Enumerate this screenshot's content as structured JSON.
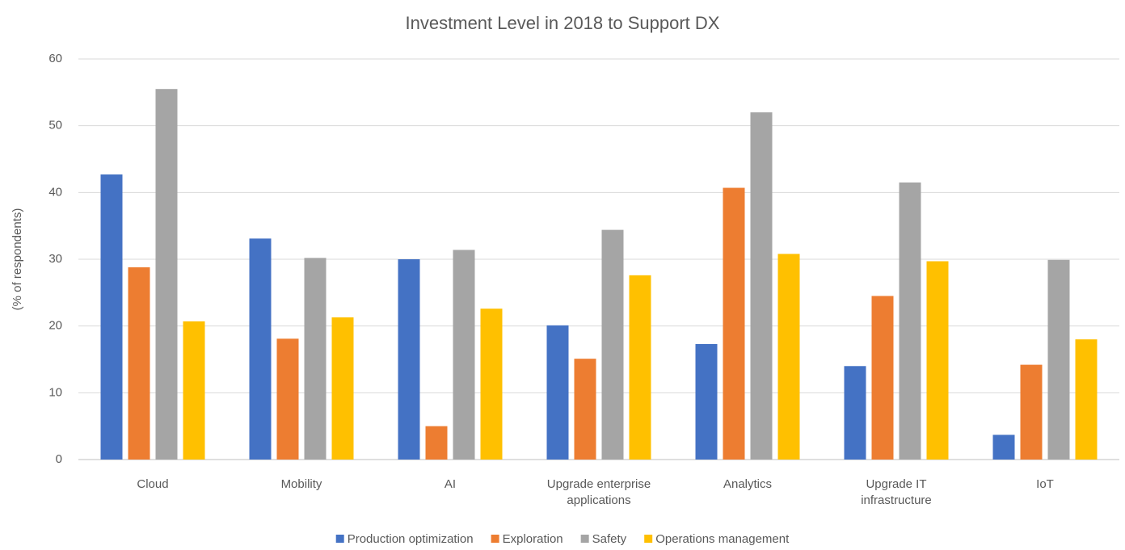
{
  "chart_data": {
    "type": "bar",
    "title": "Investment Level in 2018 to Support DX",
    "y_label": "(% of respondents)",
    "categories": [
      "Cloud",
      "Mobility",
      "AI",
      "Upgrade enterprise applications",
      "Analytics",
      "Upgrade IT infrastructure",
      "IoT"
    ],
    "series": [
      {
        "name": "Production optimization",
        "color": "#4472c4",
        "values": [
          42.7,
          33.1,
          30,
          20.1,
          17.3,
          14,
          3.7
        ]
      },
      {
        "name": "Exploration",
        "color": "#ed7d31",
        "values": [
          28.8,
          18.1,
          5,
          15.1,
          40.7,
          24.5,
          14.2
        ]
      },
      {
        "name": "Safety",
        "color": "#a5a5a5",
        "values": [
          55.5,
          30.2,
          31.4,
          34.4,
          52,
          41.5,
          29.9
        ]
      },
      {
        "name": "Operations management",
        "color": "#ffc000",
        "values": [
          20.7,
          21.3,
          22.6,
          27.6,
          30.8,
          29.7,
          18
        ]
      }
    ],
    "ylim": [
      0,
      60
    ],
    "yticks": [
      0,
      10,
      20,
      30,
      40,
      50,
      60
    ],
    "grid": true,
    "legend": "bottom"
  }
}
